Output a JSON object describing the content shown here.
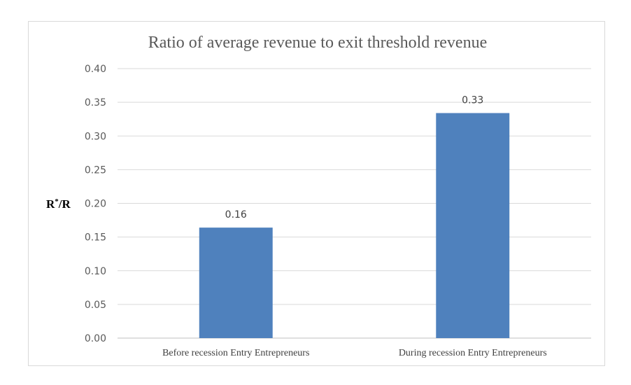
{
  "chart_data": {
    "type": "bar",
    "title": "Ratio of average revenue to exit threshold revenue",
    "ylabel_main": "R",
    "ylabel_sup": "*",
    "ylabel_rest": "/R",
    "xlabel": "",
    "categories": [
      "Before recession Entry Entrepreneurs",
      "During recession Entry Entrepreneurs"
    ],
    "values": [
      0.164,
      0.334
    ],
    "data_labels": [
      "0.16",
      "0.33"
    ],
    "ylim": [
      0,
      0.4
    ],
    "yticks": [
      "0.00",
      "0.05",
      "0.10",
      "0.15",
      "0.20",
      "0.25",
      "0.30",
      "0.35",
      "0.40"
    ],
    "grid": true,
    "legend": "none",
    "bar_color": "#4f81bd"
  }
}
